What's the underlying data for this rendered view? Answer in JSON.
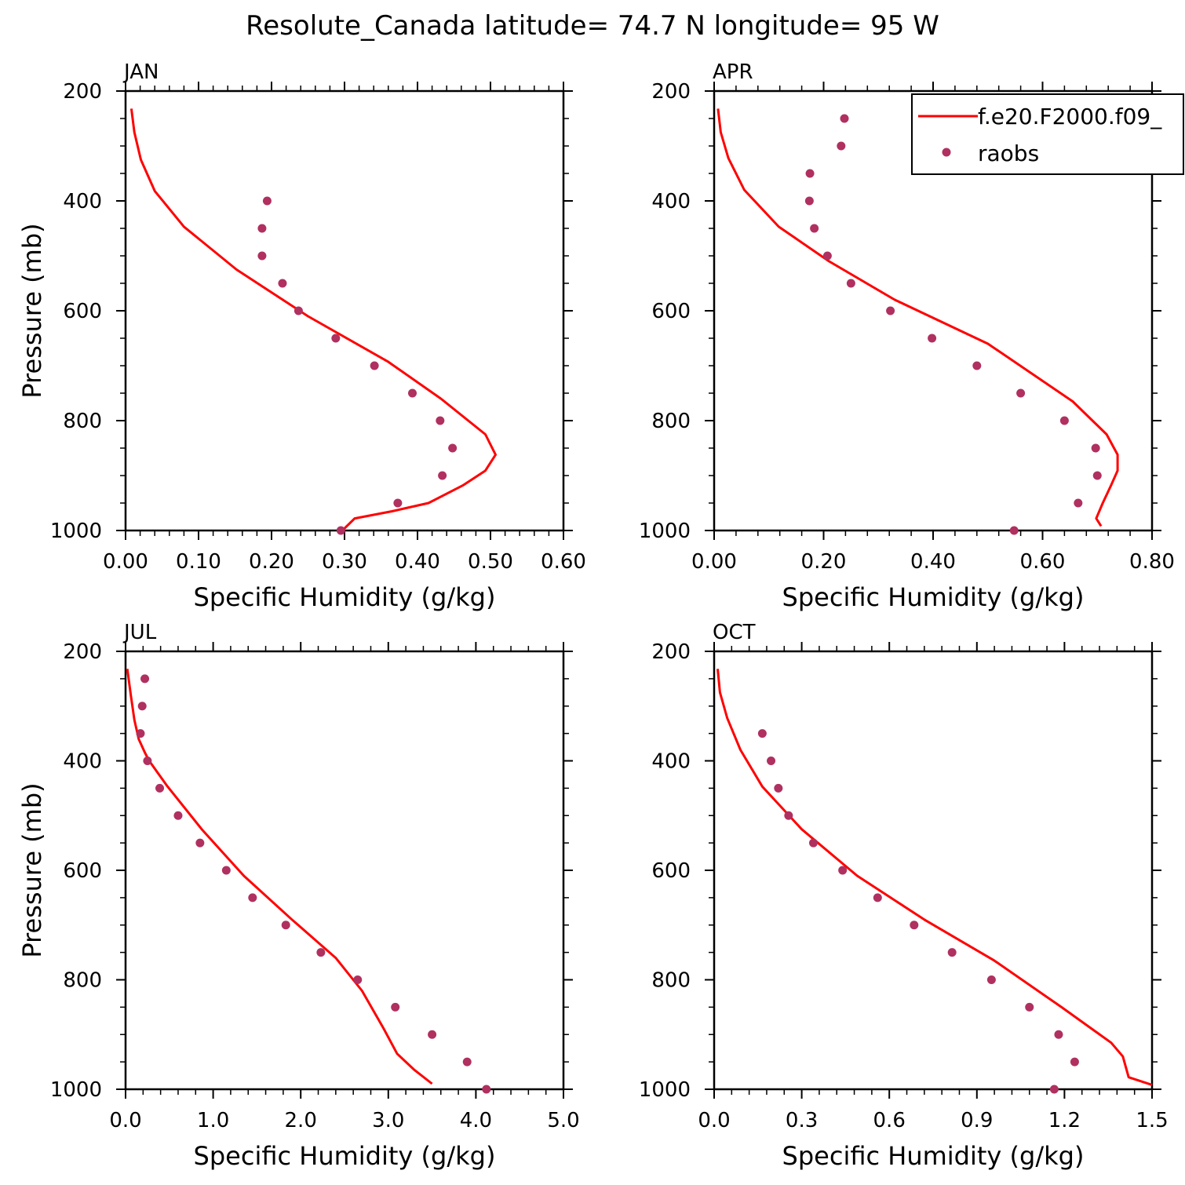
{
  "figure": {
    "title": "Resolute_Canada  latitude= 74.7 N longitude= 95 W"
  },
  "colors": {
    "model_line": "#ff0000",
    "obs_marker": "#b03060"
  },
  "legend": {
    "entries": [
      "f.e20.F2000.f09_",
      "raobs"
    ],
    "placement": "top-right of APR panel"
  },
  "chart_data": [
    {
      "type": "line",
      "panel": "JAN",
      "xlabel": "Specific Humidity (g/kg)",
      "ylabel": "Pressure (mb)",
      "xlim": [
        0,
        0.6
      ],
      "ylim": [
        1000,
        200
      ],
      "y_inverted": true,
      "x_ticks": [
        0,
        0.1,
        0.2,
        0.3,
        0.4,
        0.5,
        0.6
      ],
      "x_tick_labels": [
        "0.00",
        "0.10",
        "0.20",
        "0.30",
        "0.40",
        "0.50",
        "0.60"
      ],
      "y_ticks": [
        200,
        400,
        600,
        800,
        1000
      ],
      "y_tick_labels": [
        "200",
        "400",
        "600",
        "800",
        "1000"
      ],
      "series": [
        {
          "name": "f.e20.F2000.f09_",
          "style": "line",
          "x": [
            0.008,
            0.012,
            0.021,
            0.04,
            0.08,
            0.152,
            0.25,
            0.36,
            0.432,
            0.493,
            0.507,
            0.493,
            0.462,
            0.415,
            0.365,
            0.314,
            0.297
          ],
          "y": [
            232,
            275,
            325,
            382,
            447,
            525,
            610,
            693,
            760,
            825,
            862,
            891,
            918,
            950,
            965,
            978,
            1000
          ]
        },
        {
          "name": "raobs",
          "style": "marker",
          "x": [
            0.194,
            0.187,
            0.187,
            0.215,
            0.237,
            0.288,
            0.341,
            0.393,
            0.431,
            0.448,
            0.434,
            0.373,
            0.295
          ],
          "y": [
            400,
            450,
            500,
            550,
            600,
            650,
            700,
            750,
            800,
            850,
            900,
            950,
            1000
          ]
        }
      ]
    },
    {
      "type": "line",
      "panel": "APR",
      "xlabel": "Specific Humidity (g/kg)",
      "ylabel": "",
      "xlim": [
        0,
        0.8
      ],
      "ylim": [
        1000,
        200
      ],
      "y_inverted": true,
      "x_ticks": [
        0,
        0.2,
        0.4,
        0.6,
        0.8
      ],
      "x_tick_labels": [
        "0.00",
        "0.20",
        "0.40",
        "0.60",
        "0.80"
      ],
      "y_ticks": [
        200,
        400,
        600,
        800,
        1000
      ],
      "y_tick_labels": [
        "200",
        "400",
        "600",
        "800",
        "1000"
      ],
      "series": [
        {
          "name": "f.e20.F2000.f09_",
          "style": "line",
          "x": [
            0.007,
            0.012,
            0.026,
            0.055,
            0.118,
            0.21,
            0.33,
            0.5,
            0.655,
            0.717,
            0.737,
            0.737,
            0.725,
            0.71,
            0.698,
            0.707
          ],
          "y": [
            232,
            275,
            322,
            380,
            447,
            510,
            580,
            660,
            765,
            825,
            862,
            891,
            918,
            950,
            978,
            992
          ]
        },
        {
          "name": "raobs",
          "style": "marker",
          "x": [
            0.238,
            0.232,
            0.175,
            0.174,
            0.183,
            0.207,
            0.25,
            0.322,
            0.398,
            0.48,
            0.56,
            0.64,
            0.697,
            0.7,
            0.665,
            0.548
          ],
          "y": [
            250,
            300,
            350,
            400,
            450,
            500,
            550,
            600,
            650,
            700,
            750,
            800,
            850,
            900,
            950,
            1000
          ]
        }
      ]
    },
    {
      "type": "line",
      "panel": "JUL",
      "xlabel": "Specific Humidity (g/kg)",
      "ylabel": "Pressure (mb)",
      "xlim": [
        0,
        5.0
      ],
      "ylim": [
        1000,
        200
      ],
      "y_inverted": true,
      "x_ticks": [
        0,
        1,
        2,
        3,
        4,
        5
      ],
      "x_tick_labels": [
        "0.0",
        "1.0",
        "2.0",
        "3.0",
        "4.0",
        "5.0"
      ],
      "y_ticks": [
        200,
        400,
        600,
        800,
        1000
      ],
      "y_tick_labels": [
        "200",
        "400",
        "600",
        "800",
        "1000"
      ],
      "series": [
        {
          "name": "f.e20.F2000.f09_",
          "style": "line",
          "x": [
            0.02,
            0.06,
            0.1,
            0.15,
            0.22,
            0.27,
            0.47,
            0.87,
            1.35,
            1.9,
            2.4,
            2.7,
            2.95,
            3.1,
            3.3,
            3.5
          ],
          "y": [
            232,
            280,
            325,
            360,
            385,
            400,
            445,
            525,
            610,
            690,
            760,
            820,
            890,
            935,
            965,
            990
          ]
        },
        {
          "name": "raobs",
          "style": "marker",
          "x": [
            0.22,
            0.19,
            0.17,
            0.25,
            0.39,
            0.6,
            0.85,
            1.15,
            1.45,
            1.83,
            2.23,
            2.65,
            3.08,
            3.5,
            3.9,
            4.12
          ],
          "y": [
            250,
            300,
            350,
            400,
            450,
            500,
            550,
            600,
            650,
            700,
            750,
            800,
            850,
            900,
            950,
            1000
          ]
        }
      ]
    },
    {
      "type": "line",
      "panel": "OCT",
      "xlabel": "Specific Humidity (g/kg)",
      "ylabel": "",
      "xlim": [
        0,
        1.5
      ],
      "ylim": [
        1000,
        200
      ],
      "y_inverted": true,
      "x_ticks": [
        0,
        0.3,
        0.6,
        0.9,
        1.2,
        1.5
      ],
      "x_tick_labels": [
        "0.0",
        "0.3",
        "0.6",
        "0.9",
        "1.2",
        "1.5"
      ],
      "y_ticks": [
        200,
        400,
        600,
        800,
        1000
      ],
      "y_tick_labels": [
        "200",
        "400",
        "600",
        "800",
        "1000"
      ],
      "series": [
        {
          "name": "f.e20.F2000.f09_",
          "style": "line",
          "x": [
            0.012,
            0.02,
            0.045,
            0.09,
            0.165,
            0.3,
            0.49,
            0.72,
            0.96,
            1.19,
            1.36,
            1.4,
            1.42,
            1.5
          ],
          "y": [
            232,
            275,
            322,
            380,
            447,
            525,
            610,
            690,
            765,
            850,
            915,
            940,
            978,
            992
          ]
        },
        {
          "name": "raobs",
          "style": "marker",
          "x": [
            0.165,
            0.195,
            0.22,
            0.255,
            0.34,
            0.44,
            0.56,
            0.685,
            0.815,
            0.95,
            1.08,
            1.18,
            1.235,
            1.165
          ],
          "y": [
            350,
            400,
            450,
            500,
            550,
            600,
            650,
            700,
            750,
            800,
            850,
            900,
            950,
            1000
          ]
        }
      ]
    }
  ]
}
